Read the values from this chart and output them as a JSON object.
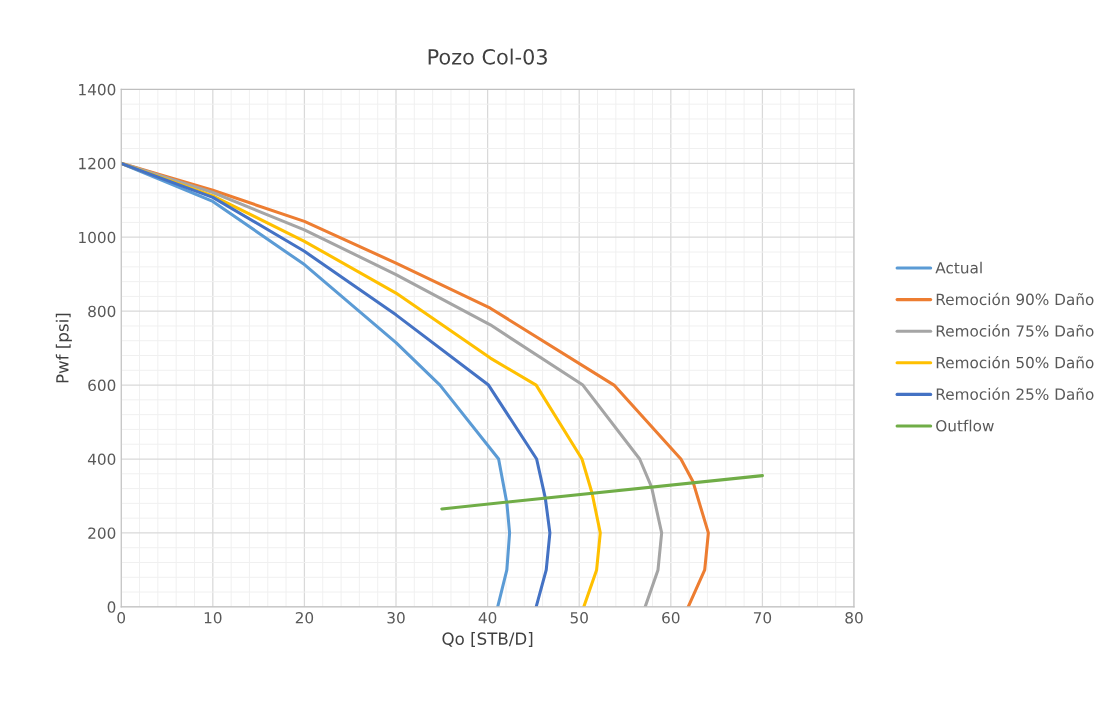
{
  "chart_data": {
    "type": "line",
    "title": "Pozo Col-03",
    "xlabel": "Qo [STB/D]",
    "ylabel": "Pwf [psi]",
    "xlim": [
      0,
      80
    ],
    "xticks": [
      0,
      10,
      20,
      30,
      40,
      50,
      60,
      70,
      80
    ],
    "ylim": [
      0,
      1400
    ],
    "yticks": [
      0,
      200,
      400,
      600,
      800,
      1000,
      1200,
      1400
    ],
    "grid": true,
    "legend": "right",
    "marker": "none",
    "line_style": "solid",
    "series": [
      {
        "name": "Actual",
        "color": "#5b9bd5",
        "x": [
          0,
          10,
          20,
          30,
          34.8,
          41.2,
          42.1,
          42.4,
          42.1,
          41.1
        ],
        "values": [
          1200,
          1097,
          926,
          715,
          600,
          400,
          281,
          200,
          100,
          0
        ]
      },
      {
        "name": "Remoción 90% Daño",
        "color": "#ed7d31",
        "x": [
          0,
          10,
          20,
          30,
          40.3,
          53.8,
          61.1,
          62.4,
          64.1,
          63.7,
          61.9
        ],
        "values": [
          1200,
          1127,
          1043,
          930,
          808,
          600,
          400,
          340,
          200,
          100,
          0
        ]
      },
      {
        "name": "Remoción 75% Daño",
        "color": "#a5a5a5",
        "x": [
          0,
          10,
          20,
          30,
          40.3,
          50.4,
          56.6,
          57.9,
          59.0,
          58.6,
          57.2
        ],
        "values": [
          1200,
          1121,
          1020,
          899,
          763,
          600,
          400,
          324,
          200,
          100,
          0
        ]
      },
      {
        "name": "Remoción 50% Daño",
        "color": "#ffc000",
        "x": [
          0,
          10,
          20,
          30,
          40.3,
          45.3,
          50.3,
          51.4,
          52.3,
          51.9,
          50.5
        ],
        "values": [
          1200,
          1112,
          989,
          849,
          673,
          600,
          400,
          308,
          200,
          100,
          0
        ]
      },
      {
        "name": "Remoción 25% Daño",
        "color": "#4472c4",
        "x": [
          0,
          10,
          20,
          30,
          40.1,
          45.35,
          46.3,
          46.8,
          46.4,
          45.3
        ],
        "values": [
          1200,
          1108,
          962,
          790,
          600,
          400,
          294,
          200,
          100,
          0
        ]
      },
      {
        "name": "Outflow",
        "color": "#70ad47",
        "x": [
          35,
          70
        ],
        "values": [
          265,
          355
        ]
      }
    ]
  }
}
